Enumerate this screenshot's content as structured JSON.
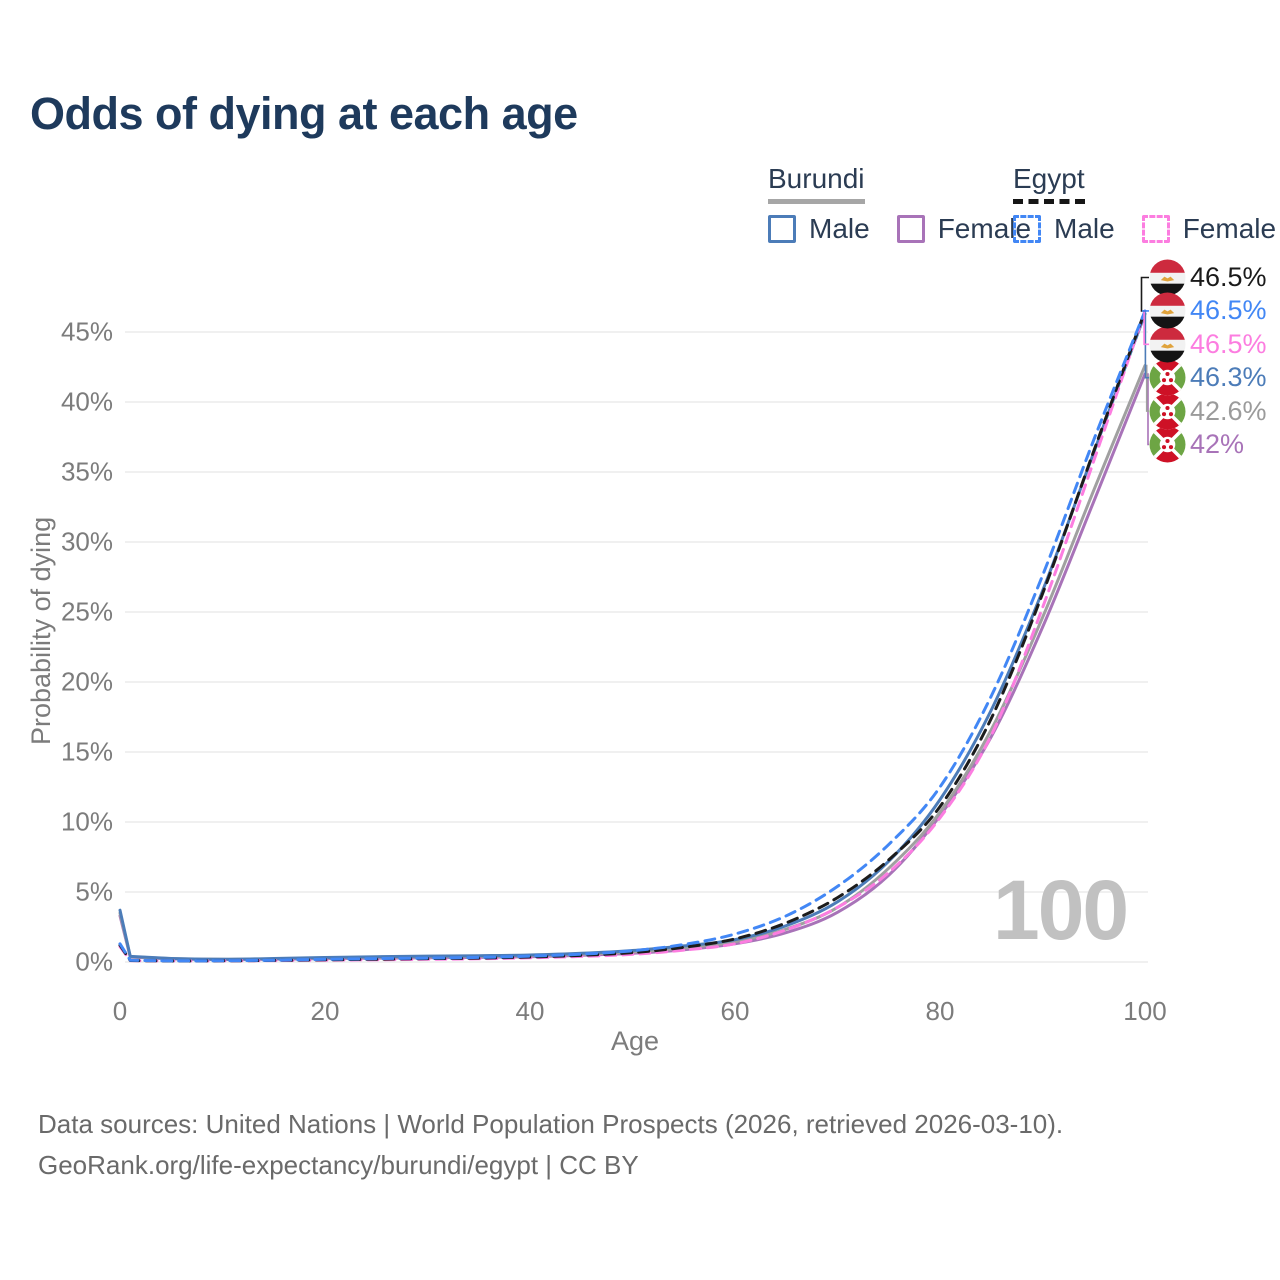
{
  "title": "Odds of dying at each age",
  "legend": {
    "groups": [
      {
        "name": "Burundi",
        "style": "solid",
        "underline_color": "#a6a6a6",
        "items": [
          {
            "label": "Male",
            "color": "#4c7cb8"
          },
          {
            "label": "Female",
            "color": "#a873b8"
          }
        ]
      },
      {
        "name": "Egypt",
        "style": "dashed",
        "underline_color": "#161616",
        "items": [
          {
            "label": "Male",
            "color": "#4287f5"
          },
          {
            "label": "Female",
            "color": "#fc7de0"
          }
        ]
      }
    ]
  },
  "footer": {
    "line1": "Data sources: United Nations | World Population Prospects (2026, retrieved 2026-03-10).",
    "line2": "GeoRank.org/life-expectancy/burundi/egypt | CC BY"
  },
  "chart_data": {
    "type": "line",
    "title": "Odds of dying at each age",
    "xlabel": "Age",
    "ylabel": "Probability of dying",
    "unit": "percent",
    "xlim": [
      0,
      100
    ],
    "ylim": [
      0,
      48
    ],
    "x_ticks": [
      0,
      20,
      40,
      60,
      80,
      100
    ],
    "y_ticks": [
      0,
      5,
      10,
      15,
      20,
      25,
      30,
      35,
      40,
      45
    ],
    "y_tick_suffix": "%",
    "grid": "horizontal",
    "legend_position": "top-right",
    "watermark": "100",
    "x": [
      0,
      1,
      5,
      10,
      15,
      20,
      25,
      30,
      35,
      40,
      45,
      50,
      55,
      60,
      65,
      70,
      75,
      80,
      85,
      90,
      95,
      100
    ],
    "series": [
      {
        "id": "burundi-female",
        "name": "Burundi Female",
        "color": "#a873b8",
        "dash": false,
        "end_label": "42%",
        "label_row": 5,
        "flag": "burundi",
        "values": [
          3.3,
          0.35,
          0.22,
          0.18,
          0.2,
          0.24,
          0.28,
          0.3,
          0.33,
          0.38,
          0.48,
          0.62,
          0.88,
          1.3,
          2.1,
          3.55,
          6.2,
          10.45,
          16.1,
          23.9,
          32.9,
          42.0
        ]
      },
      {
        "id": "burundi-both",
        "name": "Burundi Both sexes",
        "color": "#a0a0a0",
        "dash": false,
        "end_label": "42.6%",
        "label_row": 4,
        "flag": "burundi",
        "values": [
          3.5,
          0.38,
          0.24,
          0.19,
          0.22,
          0.28,
          0.33,
          0.36,
          0.39,
          0.44,
          0.55,
          0.72,
          1.0,
          1.45,
          2.35,
          3.9,
          6.7,
          10.7,
          16.6,
          24.6,
          33.7,
          42.6
        ]
      },
      {
        "id": "burundi-male",
        "name": "Burundi Male",
        "color": "#4c7cb8",
        "dash": false,
        "end_label": "46.3%",
        "label_row": 3,
        "flag": "burundi",
        "values": [
          3.7,
          0.4,
          0.25,
          0.2,
          0.25,
          0.32,
          0.38,
          0.42,
          0.45,
          0.5,
          0.62,
          0.82,
          1.15,
          1.6,
          2.6,
          4.3,
          7.2,
          11.6,
          18.0,
          26.5,
          36.4,
          46.3
        ]
      },
      {
        "id": "egypt-female",
        "name": "Egypt Female",
        "color": "#fc7de0",
        "dash": true,
        "end_label": "46.5%",
        "label_row": 2,
        "flag": "egypt",
        "values": [
          1.1,
          0.1,
          0.07,
          0.08,
          0.1,
          0.13,
          0.16,
          0.19,
          0.23,
          0.3,
          0.4,
          0.55,
          0.85,
          1.3,
          2.3,
          3.9,
          6.4,
          10.3,
          16.2,
          25.3,
          35.8,
          46.5
        ]
      },
      {
        "id": "egypt-both",
        "name": "Egypt Both sexes",
        "color": "#1c1c1c",
        "dash": true,
        "end_label": "46.5%",
        "label_row": 0,
        "flag": "egypt",
        "values": [
          1.2,
          0.11,
          0.075,
          0.085,
          0.115,
          0.16,
          0.2,
          0.24,
          0.28,
          0.36,
          0.48,
          0.67,
          1.05,
          1.65,
          2.8,
          4.6,
          7.3,
          11.1,
          17.4,
          26.3,
          36.5,
          46.5
        ]
      },
      {
        "id": "egypt-male",
        "name": "Egypt Male",
        "color": "#4287f5",
        "dash": true,
        "end_label": "46.5%",
        "label_row": 1,
        "flag": "egypt",
        "values": [
          1.3,
          0.12,
          0.08,
          0.09,
          0.13,
          0.19,
          0.24,
          0.28,
          0.33,
          0.42,
          0.56,
          0.8,
          1.25,
          2.0,
          3.3,
          5.4,
          8.4,
          12.5,
          19.0,
          27.6,
          37.3,
          46.5
        ]
      }
    ]
  }
}
